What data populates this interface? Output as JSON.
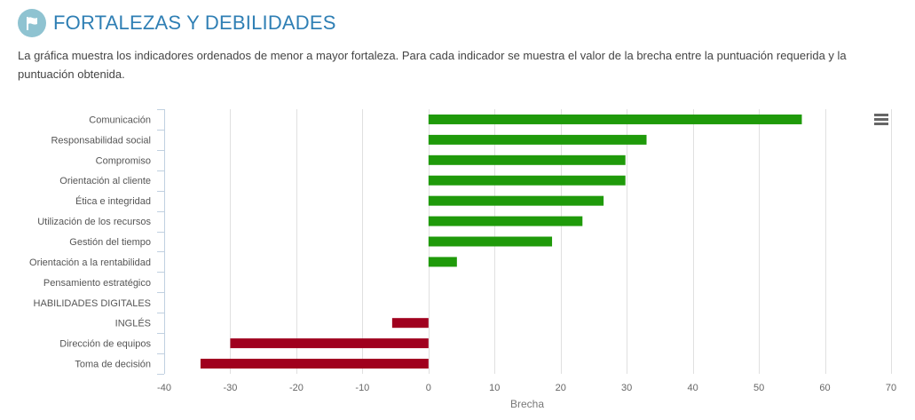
{
  "header": {
    "title": "FORTALEZAS Y DEBILIDADES",
    "icon": "flag-icon"
  },
  "description": "La gráfica muestra los indicadores ordenados de menor a mayor fortaleza. Para cada indicador se muestra el valor de la brecha entre la puntuación requerida y la puntuación obtenida.",
  "chart_menu": {
    "icon": "hamburger-menu-icon"
  },
  "colors": {
    "positive": "#1f9a0a",
    "negative": "#a0001e",
    "accent": "#2f7fb4"
  },
  "chart_data": {
    "type": "bar",
    "orientation": "horizontal",
    "categories": [
      "Comunicación",
      "Responsabilidad social",
      "Compromiso",
      "Orientación al cliente",
      "Ética e integridad",
      "Utilización de los recursos",
      "Gestión del tiempo",
      "Orientación a la rentabilidad",
      "Pensamiento estratégico",
      "HABILIDADES DIGITALES",
      "INGLÉS",
      "Dirección de equipos",
      "Toma de decisión"
    ],
    "values": [
      56.5,
      33,
      29.8,
      29.8,
      26.5,
      23.3,
      18.7,
      4.3,
      0,
      0,
      -5.5,
      -30,
      -34.5
    ],
    "xlabel": "Brecha",
    "ylabel": "",
    "xlim": [
      -40,
      70
    ],
    "xticks": [
      -40,
      -30,
      -20,
      -10,
      0,
      10,
      20,
      30,
      40,
      50,
      60,
      70
    ],
    "grid": true,
    "legend": "none"
  }
}
